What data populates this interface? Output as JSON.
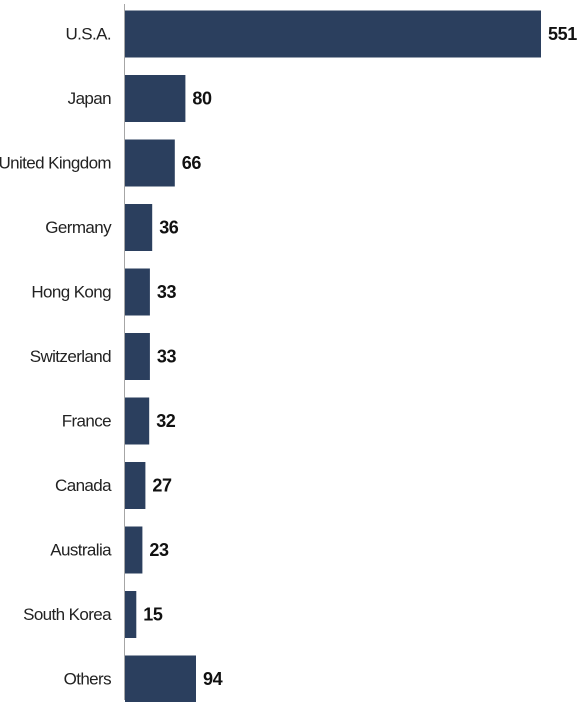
{
  "chart_data": {
    "type": "bar",
    "orientation": "horizontal",
    "title": "",
    "xlabel": "",
    "ylabel": "",
    "categories": [
      "U.S.A.",
      "Japan",
      "United Kingdom",
      "Germany",
      "Hong Kong",
      "Switzerland",
      "France",
      "Canada",
      "Australia",
      "South Korea",
      "Others"
    ],
    "values": [
      551,
      80,
      66,
      36,
      33,
      33,
      32,
      27,
      23,
      15,
      94
    ],
    "data_labels": [
      "551",
      "80",
      "66",
      "36",
      "33",
      "33",
      "32",
      "27",
      "23",
      "15",
      "94"
    ],
    "xlim": [
      0,
      551
    ],
    "grid": false,
    "legend": "none",
    "bar_color": "#2B3F5E",
    "axis_color": "#A6A6A6"
  }
}
